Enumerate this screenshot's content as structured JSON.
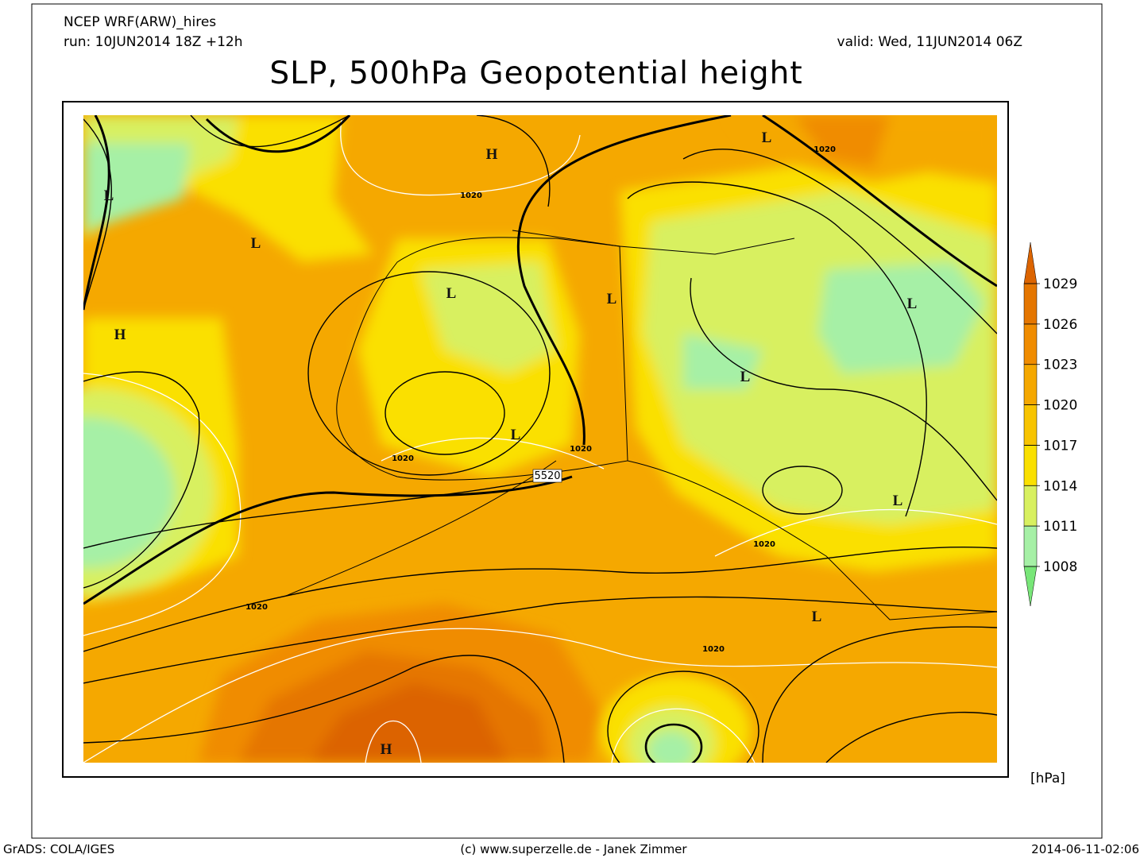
{
  "header": {
    "model": "NCEP WRF(ARW)_hires",
    "run": "run: 10JUN2014 18Z +12h",
    "valid": "valid: Wed, 11JUN2014 06Z",
    "title": "SLP, 500hPa Geopotential height"
  },
  "map": {
    "pressure_centers": [
      "H",
      "H",
      "H",
      "L",
      "L",
      "L",
      "L",
      "L",
      "L",
      "L",
      "L",
      "L",
      "L"
    ],
    "contour_labels": [
      "1020",
      "1020",
      "1020",
      "1020",
      "1020",
      "1020",
      "1020",
      "5520"
    ]
  },
  "colorbar": {
    "ticks": [
      1008,
      1011,
      1014,
      1017,
      1020,
      1023,
      1026,
      1029
    ],
    "colors": [
      "#78e678",
      "#a6f0a6",
      "#d8f060",
      "#fae000",
      "#f8c400",
      "#f5a800",
      "#f08c00",
      "#e57600",
      "#dc6400"
    ],
    "unit": "[hPa]"
  },
  "footer": {
    "left": "GrADS: COLA/IGES",
    "center": "(c) www.superzelle.de - Janek Zimmer",
    "right": "2014-06-11-02:06"
  }
}
